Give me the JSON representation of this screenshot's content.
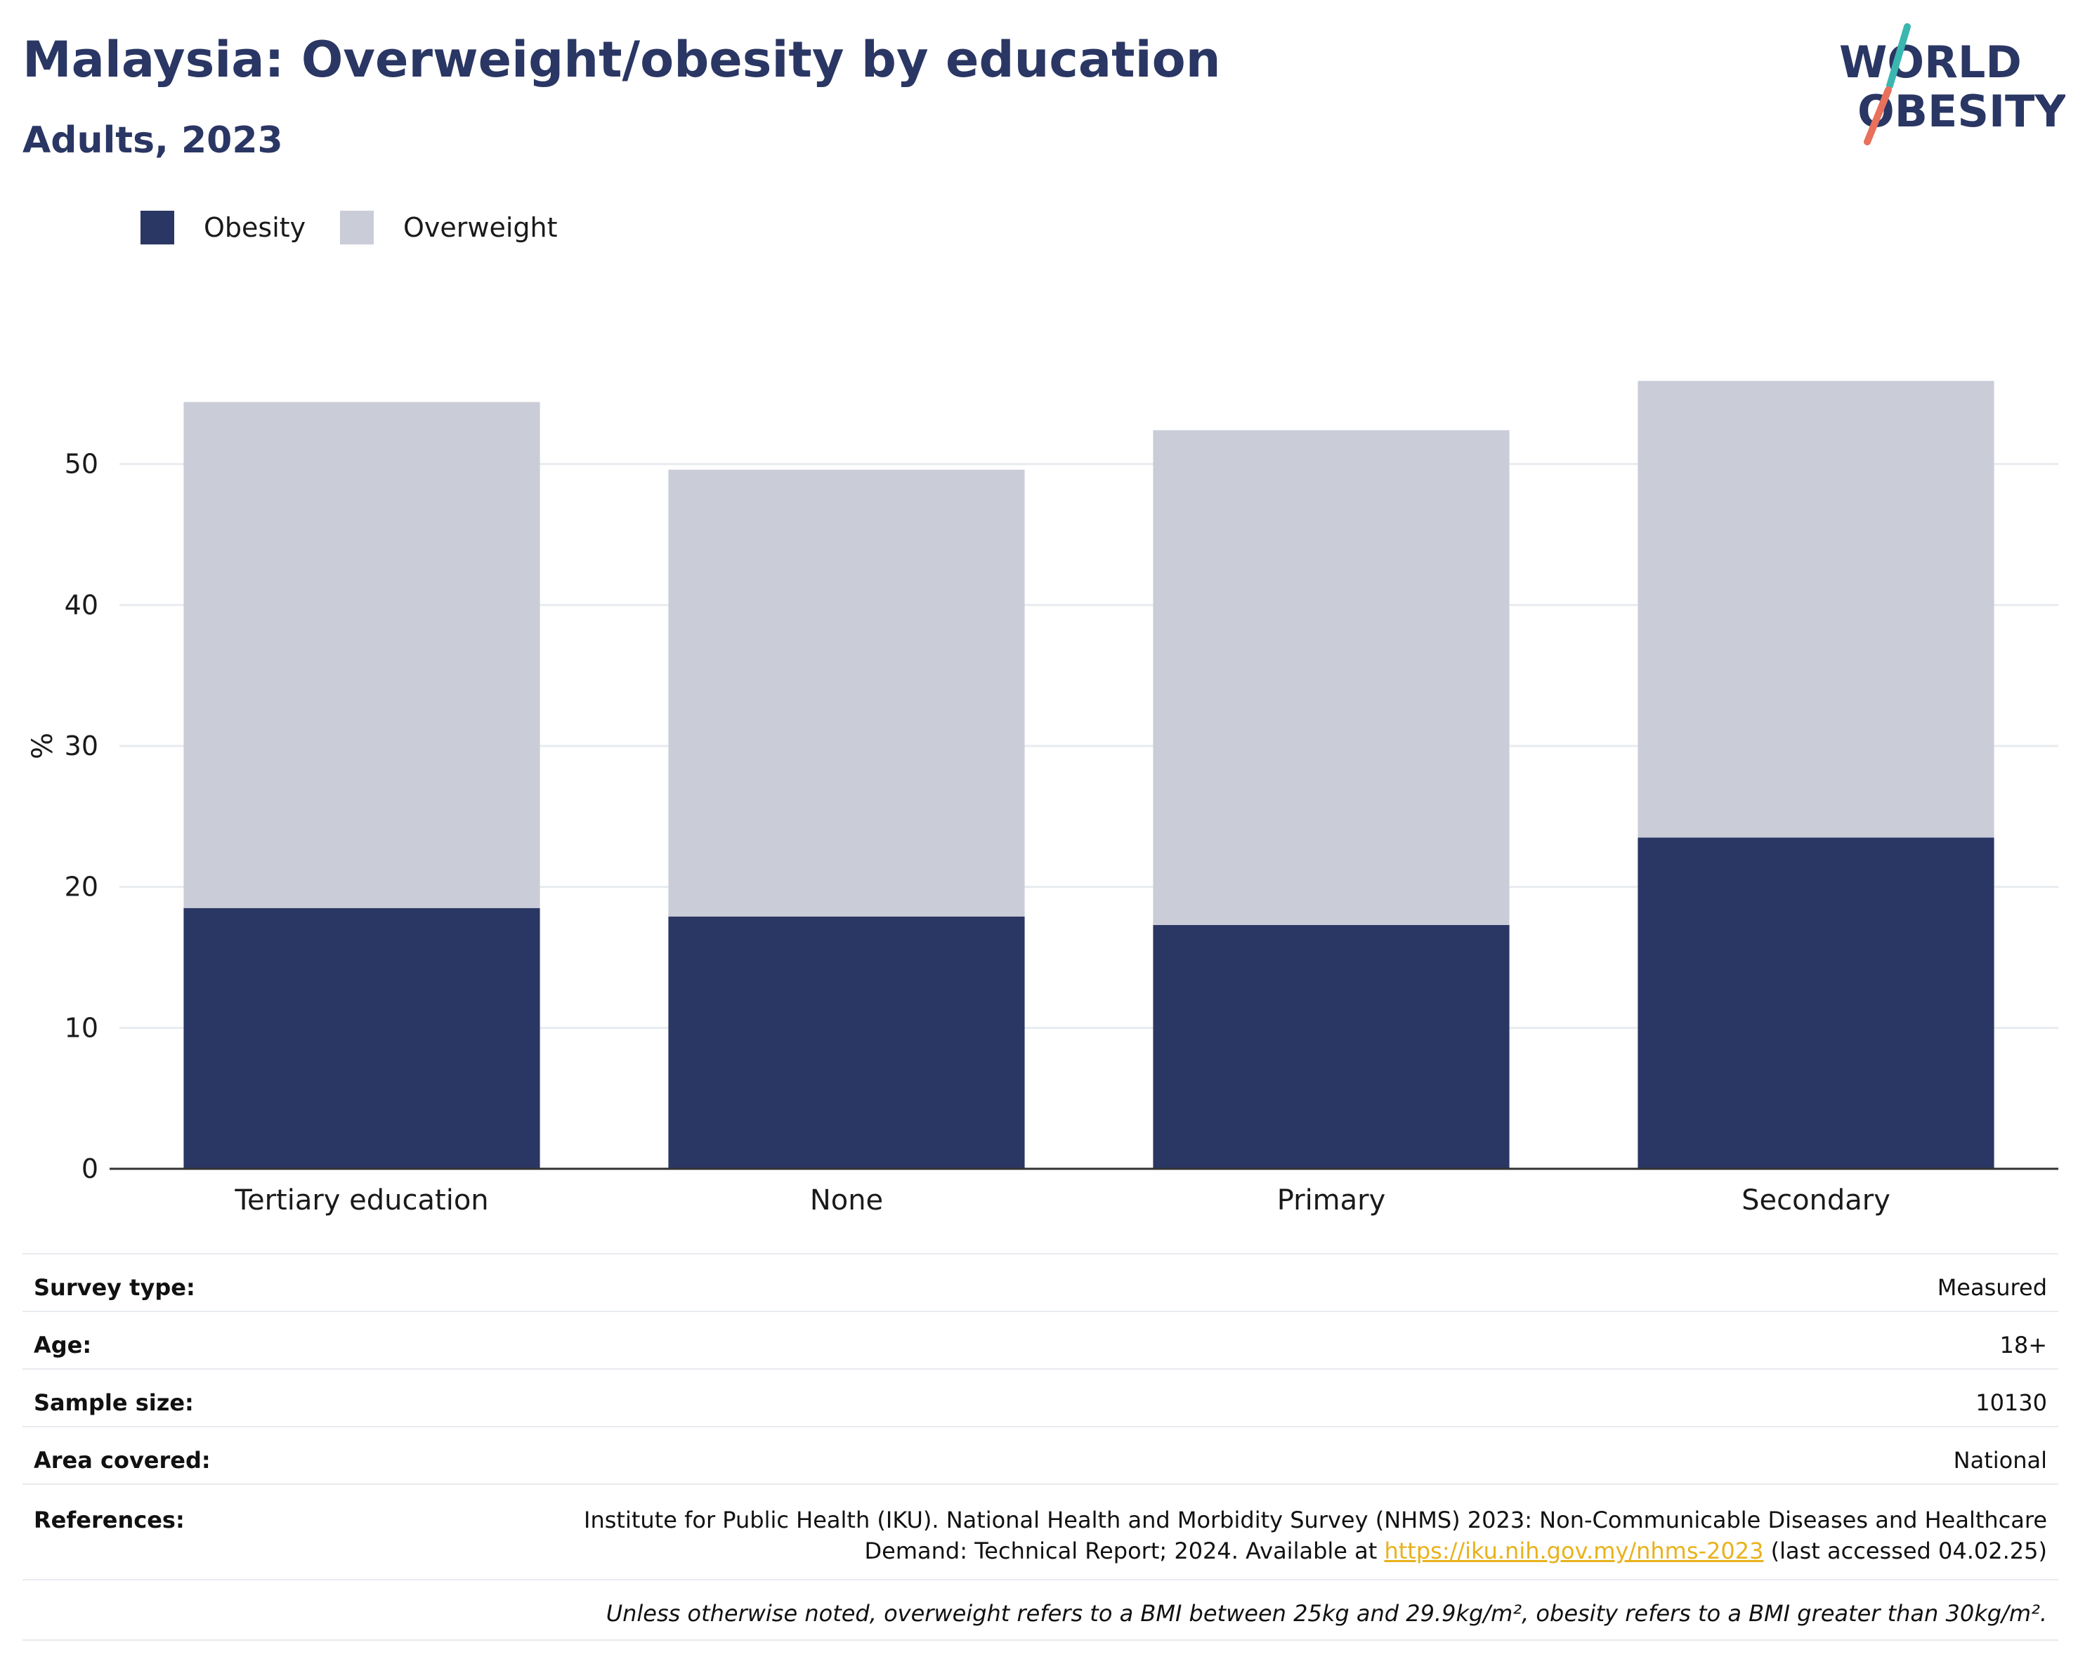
{
  "header": {
    "title": "Malaysia: Overweight/obesity by education",
    "subtitle": "Adults, 2023"
  },
  "logo": {
    "line1": "WORLD",
    "line2": "OBESITY",
    "slash_top_color": "#3bb6b0",
    "slash_bottom_color": "#e8705c",
    "text_color": "#2a3663"
  },
  "colors": {
    "obesity": "#2a3663",
    "overweight": "#cacdd8",
    "grid": "#e8ebef",
    "axis": "#333333",
    "link": "#e8b21c"
  },
  "chart_data": {
    "type": "bar",
    "stacked": true,
    "categories": [
      "Tertiary education",
      "None",
      "Primary",
      "Secondary"
    ],
    "series": [
      {
        "name": "Obesity",
        "values": [
          18.5,
          17.9,
          17.3,
          23.5
        ]
      },
      {
        "name": "Overweight",
        "values": [
          35.9,
          31.7,
          35.1,
          32.4
        ]
      }
    ],
    "ylabel": "%",
    "ylim": [
      0,
      60
    ],
    "yticks": [
      0,
      10,
      20,
      30,
      40,
      50
    ],
    "grid": true,
    "legend_position": "top-left"
  },
  "info": {
    "rows": [
      {
        "key": "Survey type:",
        "value": "Measured"
      },
      {
        "key": "Age:",
        "value": "18+"
      },
      {
        "key": "Sample size:",
        "value": "10130"
      },
      {
        "key": "Area covered:",
        "value": "National"
      }
    ],
    "references_key": "References:",
    "references_line1": "Institute for Public Health (IKU). National Health and Morbidity Survey (NHMS) 2023: Non-Communicable Diseases and Healthcare",
    "references_line2_pre": "Demand: Technical Report; 2024. Available at ",
    "references_link": "https://iku.nih.gov.my/nhms-2023",
    "references_line2_post": " (last accessed 04.02.25)",
    "note": "Unless otherwise noted, overweight refers to a BMI between 25kg and 29.9kg/m², obesity refers to a BMI greater than 30kg/m²."
  }
}
